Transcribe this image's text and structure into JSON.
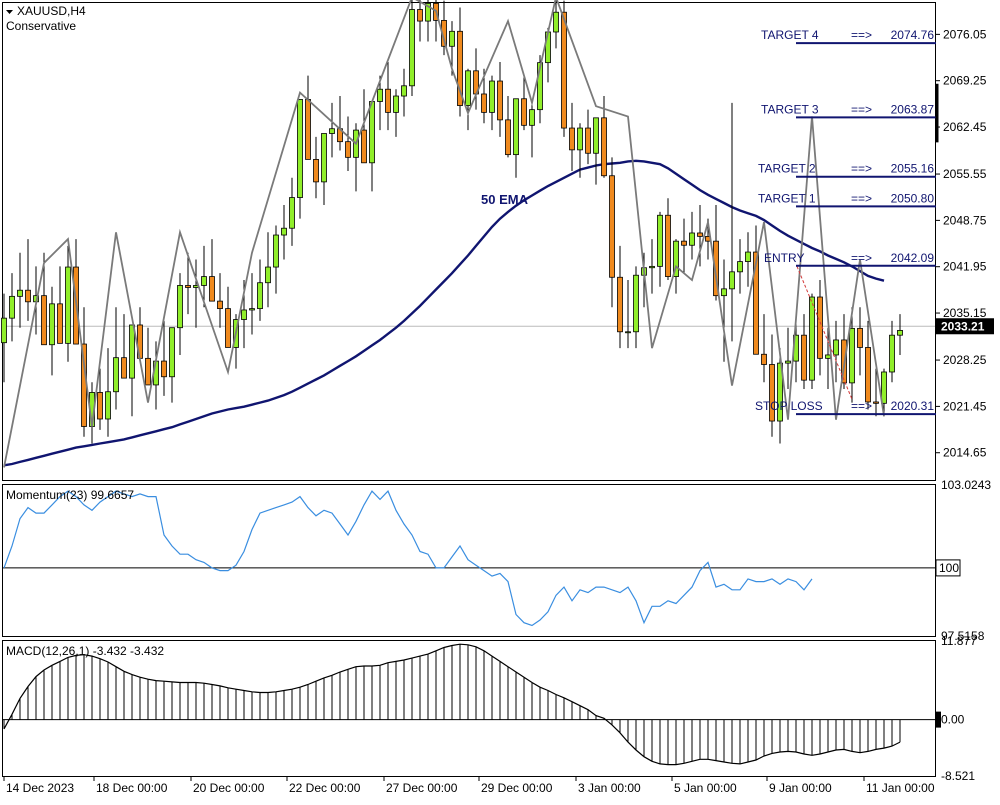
{
  "header": {
    "symbol": "XAUUSD,H4",
    "strategy": "Conservative"
  },
  "colors": {
    "bull": "#90ee2a",
    "bear": "#f08a1e",
    "ema": "#101570",
    "zigzag": "#7a7a7a",
    "level": "#101570",
    "momentum": "#3a8ee0",
    "axis": "#000000",
    "current": "#000000"
  },
  "chart_data": [
    {
      "type": "candlestick",
      "title": "XAUUSD,H4",
      "subtitle": "Conservative",
      "ylim": [
        2010.5,
        2080.8
      ],
      "y_ticks": [
        "2076.05",
        "2069.25",
        "2062.45",
        "2055.55",
        "2048.75",
        "2041.95",
        "2035.15",
        "2028.25",
        "2021.45",
        "2014.65"
      ],
      "x_ticks": [
        "14 Dec 2023",
        "18 Dec 00:00",
        "20 Dec 00:00",
        "22 Dec 00:00",
        "27 Dec 00:00",
        "29 Dec 00:00",
        "3 Jan 00:00",
        "5 Jan 00:00",
        "9 Jan 00:00",
        "11 Jan 00:00"
      ],
      "current_price": "2033.21",
      "ema_label": "50 EMA",
      "levels": [
        {
          "name": "TARGET 4",
          "arrow": "==>",
          "value": "2074.76"
        },
        {
          "name": "TARGET 3",
          "arrow": "==>",
          "value": "2063.87"
        },
        {
          "name": "TARGET 2",
          "arrow": "==>",
          "value": "2055.16"
        },
        {
          "name": "TARGET 1",
          "arrow": "==>",
          "value": "2050.80"
        },
        {
          "name": "ENTRY",
          "arrow": "==>",
          "value": "2042.09"
        },
        {
          "name": "STOP LOSS",
          "arrow": "==>",
          "value": "2020.31"
        }
      ],
      "candles_ohlc": [
        [
          2030.8,
          2038,
          2025,
          2034.4
        ],
        [
          2034.4,
          2041,
          2031,
          2037.6
        ],
        [
          2037.6,
          2044,
          2033,
          2038.5
        ],
        [
          2038.5,
          2046,
          2034,
          2036.8
        ],
        [
          2036.8,
          2042,
          2032,
          2037.7
        ],
        [
          2037.7,
          2044,
          2033,
          2030.5
        ],
        [
          2030.5,
          2039,
          2026,
          2036.5
        ],
        [
          2036.5,
          2042,
          2033,
          2030.7
        ],
        [
          2030.7,
          2045,
          2028,
          2041.9
        ],
        [
          2041.9,
          2046,
          2036,
          2030.6
        ],
        [
          2030.6,
          2036,
          2017,
          2018.5
        ],
        [
          2018.5,
          2025,
          2016,
          2023.5
        ],
        [
          2023.5,
          2027,
          2018,
          2019.6
        ],
        [
          2019.6,
          2030,
          2017,
          2023.6
        ],
        [
          2023.6,
          2036,
          2021,
          2028.6
        ],
        [
          2028.6,
          2035,
          2026,
          2025.6
        ],
        [
          2025.6,
          2030,
          2020,
          2033.4
        ],
        [
          2033.4,
          2036,
          2028,
          2028.5
        ],
        [
          2028.5,
          2033,
          2025,
          2024.6
        ],
        [
          2024.6,
          2031,
          2021,
          2028.1
        ],
        [
          2028.1,
          2034,
          2023,
          2025.8
        ],
        [
          2025.8,
          2031,
          2022,
          2033.0
        ],
        [
          2033.0,
          2041,
          2029,
          2039.2
        ],
        [
          2039.2,
          2044,
          2035,
          2038.9
        ],
        [
          2038.9,
          2043,
          2033,
          2039.2
        ],
        [
          2039.2,
          2045,
          2036,
          2040.5
        ],
        [
          2040.5,
          2046,
          2037,
          2036.9
        ],
        [
          2036.9,
          2041,
          2033,
          2035.8
        ],
        [
          2035.8,
          2039,
          2031,
          2030.1
        ],
        [
          2030.1,
          2035,
          2027,
          2034.2
        ],
        [
          2034.2,
          2040,
          2030,
          2035.6
        ],
        [
          2035.6,
          2041,
          2032,
          2035.8
        ],
        [
          2035.8,
          2043,
          2034,
          2039.6
        ],
        [
          2039.6,
          2047,
          2036,
          2041.9
        ],
        [
          2041.9,
          2048,
          2038,
          2046.6
        ],
        [
          2046.6,
          2051,
          2043,
          2047.6
        ],
        [
          2047.6,
          2055,
          2045,
          2052.1
        ],
        [
          2052.1,
          2064,
          2049,
          2066.5
        ],
        [
          2066.5,
          2070,
          2058,
          2057.7
        ],
        [
          2057.7,
          2061,
          2052,
          2054.4
        ],
        [
          2054.4,
          2060,
          2051,
          2061.5
        ],
        [
          2061.5,
          2066,
          2058,
          2062.2
        ],
        [
          2062.2,
          2067,
          2059,
          2060.3
        ],
        [
          2060.3,
          2064,
          2056,
          2058.0
        ],
        [
          2058.0,
          2063,
          2053,
          2062.0
        ],
        [
          2062.0,
          2068,
          2059,
          2057.2
        ],
        [
          2057.2,
          2061,
          2053,
          2066.2
        ],
        [
          2066.2,
          2070,
          2062,
          2068.0
        ],
        [
          2068.0,
          2072,
          2062,
          2064.6
        ],
        [
          2064.6,
          2068,
          2061,
          2067.0
        ],
        [
          2067.0,
          2071,
          2064,
          2068.5
        ],
        [
          2068.5,
          2082,
          2067,
          2079.7
        ],
        [
          2079.7,
          2083,
          2075,
          2078.0
        ],
        [
          2078.0,
          2082,
          2075,
          2080.6
        ],
        [
          2080.6,
          2083,
          2075,
          2078.1
        ],
        [
          2078.1,
          2081,
          2073,
          2074.3
        ],
        [
          2074.3,
          2078,
          2070,
          2076.5
        ],
        [
          2076.5,
          2080,
          2064,
          2065.6
        ],
        [
          2065.6,
          2071,
          2062,
          2070.7
        ],
        [
          2070.7,
          2074,
          2065,
          2067.3
        ],
        [
          2067.3,
          2071,
          2063,
          2064.6
        ],
        [
          2064.6,
          2070,
          2062,
          2069.2
        ],
        [
          2069.2,
          2072,
          2061,
          2063.5
        ],
        [
          2063.5,
          2067,
          2058,
          2058.4
        ],
        [
          2058.4,
          2063,
          2055,
          2066.6
        ],
        [
          2066.6,
          2070,
          2062,
          2062.7
        ],
        [
          2062.7,
          2066,
          2058,
          2065.0
        ],
        [
          2065.0,
          2073,
          2063,
          2071.9
        ],
        [
          2071.9,
          2077,
          2069,
          2076.4
        ],
        [
          2076.4,
          2081,
          2074,
          2079.3
        ],
        [
          2079.3,
          2081,
          2061,
          2062.3
        ],
        [
          2062.3,
          2066,
          2056,
          2059.1
        ],
        [
          2059.1,
          2063,
          2055,
          2062.3
        ],
        [
          2062.3,
          2065,
          2057,
          2058.6
        ],
        [
          2058.6,
          2062,
          2054,
          2063.8
        ],
        [
          2063.8,
          2067,
          2055,
          2055.3
        ],
        [
          2055.3,
          2058,
          2036,
          2040.4
        ],
        [
          2040.4,
          2045,
          2030,
          2032.4
        ],
        [
          2032.4,
          2040,
          2030,
          2032.4
        ],
        [
          2032.4,
          2042,
          2030,
          2040.7
        ],
        [
          2040.7,
          2044,
          2036,
          2041.8
        ],
        [
          2041.8,
          2046,
          2038,
          2042.0
        ],
        [
          2042.0,
          2050,
          2039,
          2049.5
        ],
        [
          2049.5,
          2052,
          2040,
          2040.5
        ],
        [
          2040.5,
          2046,
          2038,
          2045.7
        ],
        [
          2045.7,
          2049,
          2041,
          2045.1
        ],
        [
          2045.1,
          2050,
          2043,
          2046.9
        ],
        [
          2046.9,
          2051,
          2042,
          2046.4
        ],
        [
          2046.4,
          2049,
          2043,
          2045.7
        ],
        [
          2045.7,
          2051,
          2037,
          2037.7
        ],
        [
          2037.7,
          2043,
          2028,
          2038.7
        ],
        [
          2038.7,
          2066,
          2031,
          2041.2
        ],
        [
          2041.2,
          2046,
          2038,
          2042.7
        ],
        [
          2042.7,
          2047,
          2039,
          2044.1
        ],
        [
          2044.1,
          2048,
          2032,
          2029.1
        ],
        [
          2029.1,
          2035,
          2025,
          2027.6
        ],
        [
          2027.6,
          2032,
          2017,
          2019.3
        ],
        [
          2019.3,
          2030,
          2016,
          2027.8
        ],
        [
          2027.8,
          2033,
          2024,
          2028.1
        ],
        [
          2028.1,
          2034,
          2025,
          2031.9
        ],
        [
          2031.9,
          2035,
          2024,
          2025.3
        ],
        [
          2025.3,
          2038,
          2024,
          2037.5
        ],
        [
          2037.5,
          2040,
          2026,
          2028.5
        ],
        [
          2028.5,
          2033,
          2024,
          2029.0
        ],
        [
          2029.0,
          2034,
          2025,
          2031.2
        ],
        [
          2031.2,
          2035,
          2024,
          2024.9
        ],
        [
          2024.9,
          2036,
          2022,
          2032.9
        ],
        [
          2032.9,
          2036,
          2026,
          2030.1
        ],
        [
          2030.1,
          2034,
          2021,
          2022.1
        ],
        [
          2022.1,
          2027,
          2020,
          2021.9
        ],
        [
          2021.9,
          2027,
          2020,
          2026.5
        ],
        [
          2026.5,
          2034,
          2025,
          2031.9
        ],
        [
          2031.9,
          2035,
          2029,
          2032.6
        ]
      ],
      "ema_50": [
        2012.8,
        2013.0,
        2013.3,
        2013.6,
        2013.9,
        2014.2,
        2014.5,
        2014.8,
        2015.1,
        2015.4,
        2015.6,
        2015.8,
        2016.0,
        2016.2,
        2016.4,
        2016.6,
        2016.9,
        2017.2,
        2017.5,
        2017.8,
        2018.1,
        2018.4,
        2018.8,
        2019.2,
        2019.6,
        2020.0,
        2020.4,
        2020.7,
        2021.0,
        2021.2,
        2021.4,
        2021.7,
        2022.0,
        2022.3,
        2022.7,
        2023.1,
        2023.6,
        2024.2,
        2024.8,
        2025.4,
        2026.0,
        2026.7,
        2027.4,
        2028.1,
        2028.8,
        2029.6,
        2030.4,
        2031.2,
        2032.1,
        2033.0,
        2034.0,
        2035.1,
        2036.2,
        2037.4,
        2038.6,
        2039.8,
        2041.0,
        2042.3,
        2043.6,
        2045.0,
        2046.4,
        2047.8,
        2049.0,
        2050.0,
        2050.9,
        2051.7,
        2052.4,
        2053.1,
        2053.8,
        2054.4,
        2055.0,
        2055.6,
        2056.2,
        2056.5,
        2056.8,
        2057.0,
        2057.1,
        2057.2,
        2057.4,
        2057.5,
        2057.4,
        2057.2,
        2057.0,
        2056.4,
        2055.6,
        2054.8,
        2054.0,
        2053.2,
        2052.5,
        2051.9,
        2051.3,
        2050.7,
        2050.2,
        2049.8,
        2049.4,
        2048.8,
        2048.0,
        2047.2,
        2046.5,
        2045.9,
        2045.3,
        2044.7,
        2044.2,
        2043.6,
        2043.1,
        2042.6,
        2042.0,
        2041.3,
        2040.6,
        2040.2,
        2039.9
      ],
      "zigzag": [
        [
          0,
          2012.5
        ],
        [
          5,
          2042.5
        ],
        [
          8,
          2046.0
        ],
        [
          11,
          2018.5
        ],
        [
          14,
          2047.0
        ],
        [
          18,
          2022.0
        ],
        [
          22,
          2047.0
        ],
        [
          28,
          2026.5
        ],
        [
          31,
          2044.0
        ],
        [
          37,
          2067.5
        ],
        [
          44,
          2060.0
        ],
        [
          51,
          2081.5
        ],
        [
          54,
          2079.5
        ],
        [
          56,
          2071.0
        ],
        [
          58,
          2064.5
        ],
        [
          63,
          2078.0
        ],
        [
          66,
          2066.0
        ],
        [
          69,
          2081.5
        ],
        [
          74,
          2065.5
        ],
        [
          78,
          2064.0
        ],
        [
          81,
          2030.0
        ],
        [
          84,
          2042.0
        ],
        [
          86,
          2040.0
        ],
        [
          88,
          2048.5
        ],
        [
          91,
          2024.5
        ],
        [
          95,
          2048.5
        ],
        [
          98,
          2019.5
        ],
        [
          101,
          2064.0
        ],
        [
          104,
          2019.5
        ],
        [
          107,
          2043.0
        ],
        [
          110,
          2020.0
        ]
      ],
      "momentum": {
        "label": "Momentum(23) 99.6657",
        "ylim": [
          97.5158,
          103.0243
        ],
        "ticks": [
          "103.0243",
          "100",
          "97.5158"
        ],
        "reference": 100,
        "values": [
          100.0,
          100.8,
          101.8,
          102.2,
          102.0,
          102.0,
          102.3,
          102.6,
          102.8,
          102.6,
          102.3,
          102.1,
          102.4,
          102.6,
          102.8,
          102.7,
          102.6,
          102.7,
          102.6,
          102.6,
          101.2,
          100.8,
          100.5,
          100.5,
          100.3,
          100.2,
          100.0,
          99.9,
          99.9,
          100.1,
          100.6,
          101.4,
          102.0,
          102.1,
          102.2,
          102.3,
          102.4,
          102.6,
          102.2,
          101.9,
          102.1,
          102.0,
          101.6,
          101.2,
          101.7,
          102.3,
          102.8,
          102.5,
          102.8,
          102.1,
          101.6,
          101.2,
          100.6,
          100.5,
          100.0,
          100.0,
          100.4,
          100.8,
          100.3,
          100.1,
          99.9,
          99.7,
          99.8,
          99.5,
          98.3,
          98.0,
          97.9,
          98.1,
          98.4,
          99.0,
          99.3,
          98.8,
          99.2,
          99.1,
          99.3,
          99.3,
          99.2,
          99.1,
          99.3,
          98.8,
          98.0,
          98.6,
          98.6,
          98.8,
          98.7,
          99.0,
          99.3,
          99.9,
          100.2,
          99.3,
          99.4,
          99.2,
          99.2,
          99.6,
          99.5,
          99.5,
          99.6,
          99.4,
          99.6,
          99.5,
          99.2,
          99.6
        ]
      },
      "macd": {
        "label": "MACD(12,26,1) -3.432 -3.432",
        "ylim": [
          -8.521,
          11.877
        ],
        "ticks": [
          "11.877",
          "0.00",
          "-8.521"
        ],
        "values": [
          -1.4,
          0.8,
          3.2,
          5.0,
          6.5,
          7.5,
          8.2,
          8.8,
          9.4,
          9.7,
          9.8,
          9.6,
          9.2,
          8.7,
          8.0,
          7.3,
          6.8,
          6.4,
          6.1,
          5.9,
          5.8,
          5.7,
          5.6,
          5.6,
          5.6,
          5.5,
          5.3,
          5.1,
          4.8,
          4.6,
          4.4,
          4.2,
          4.1,
          4.1,
          4.2,
          4.4,
          4.6,
          4.9,
          5.3,
          5.8,
          6.3,
          6.7,
          7.2,
          7.6,
          8.0,
          8.1,
          8.1,
          8.2,
          8.6,
          8.8,
          9.0,
          9.3,
          9.6,
          9.9,
          10.4,
          10.9,
          11.2,
          11.4,
          11.3,
          11.0,
          10.4,
          9.6,
          8.8,
          8.0,
          7.2,
          6.4,
          5.6,
          4.9,
          4.4,
          3.8,
          3.3,
          2.7,
          2.1,
          1.5,
          0.6,
          0.2,
          -0.8,
          -2.0,
          -3.4,
          -4.6,
          -5.6,
          -6.3,
          -6.7,
          -6.8,
          -6.8,
          -6.6,
          -6.3,
          -6.0,
          -6.0,
          -6.2,
          -6.4,
          -6.6,
          -6.7,
          -6.4,
          -6.1,
          -5.5,
          -5.1,
          -4.9,
          -4.8,
          -4.9,
          -5.2,
          -5.4,
          -5.2,
          -4.9,
          -4.6,
          -4.5,
          -4.8,
          -5.0,
          -4.8,
          -4.5,
          -4.3,
          -4.0,
          -3.4
        ]
      }
    }
  ]
}
